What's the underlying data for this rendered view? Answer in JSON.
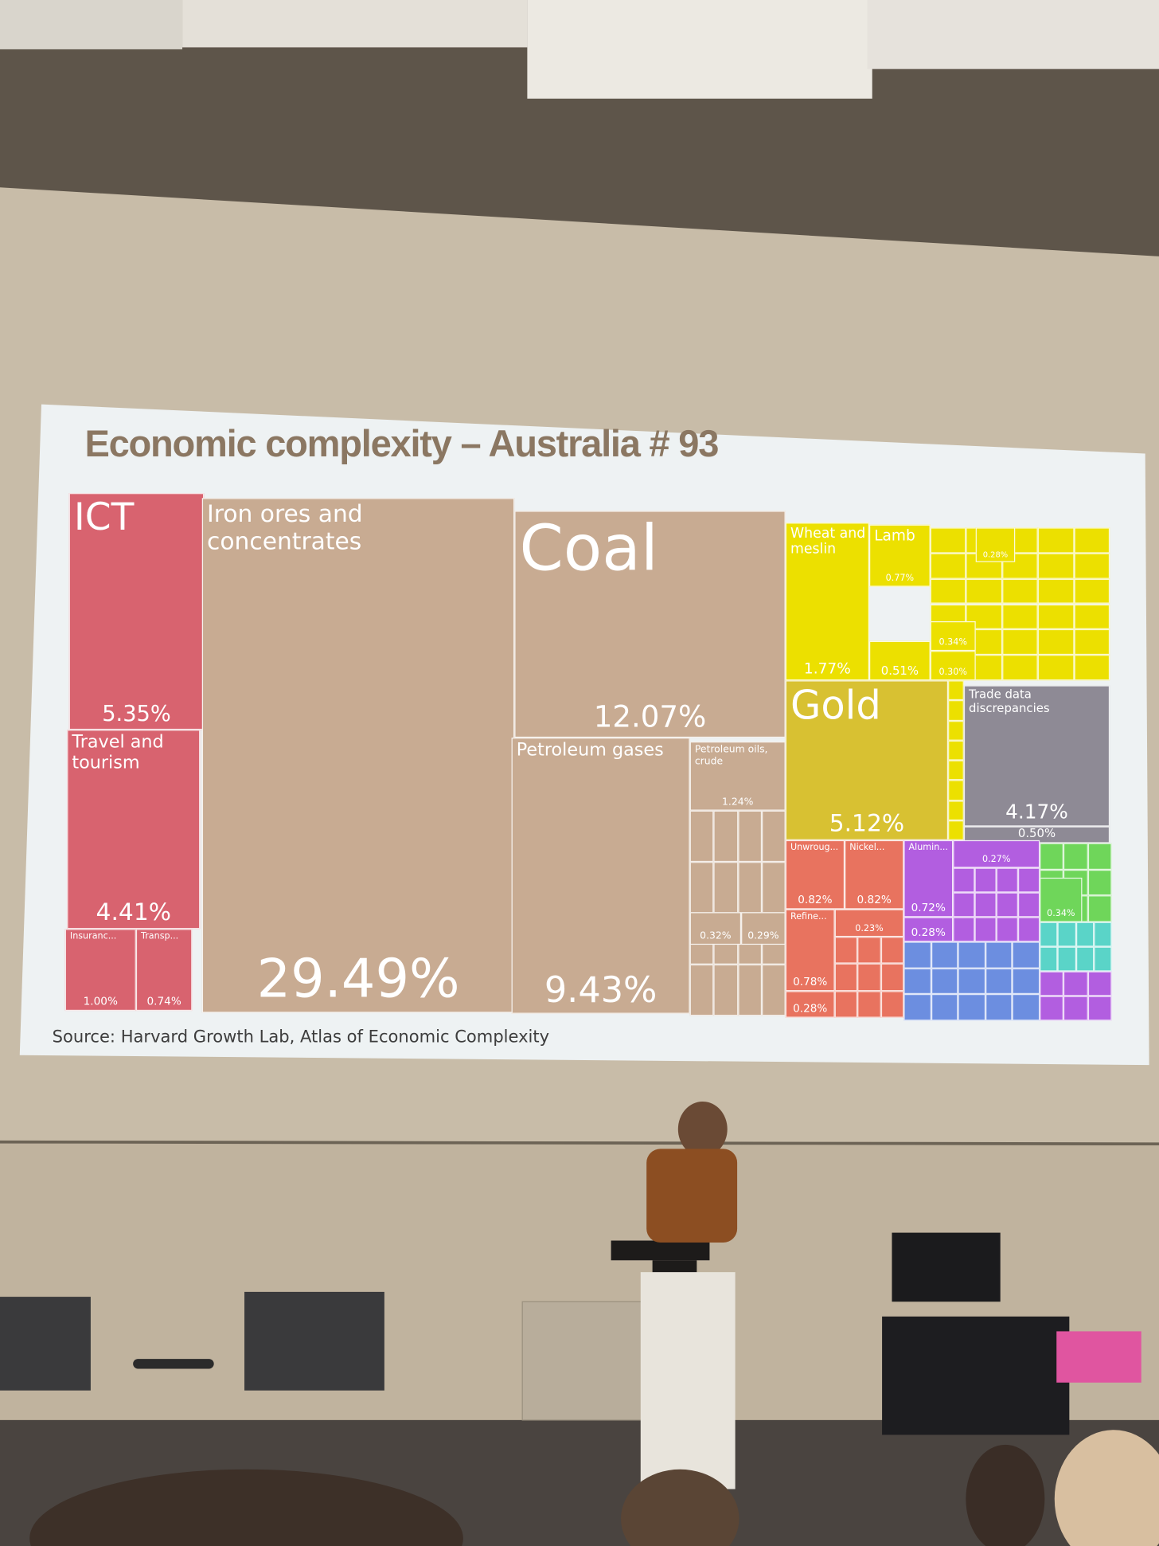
{
  "chart_data": {
    "type": "treemap",
    "title": "Economic complexity – Australia # 93",
    "source": "Source: Harvard Growth Lab, Atlas of Economic Complexity",
    "categories": [
      "ICT",
      "Travel and tourism",
      "Insuranc...",
      "Transp...",
      "Iron ores and concentrates",
      "Coal",
      "Petroleum gases",
      "Petroleum oils, crude",
      null,
      null,
      "Wheat and meslin",
      "Lamb",
      null,
      null,
      null,
      null,
      "Gold",
      "Trade data discrepancies",
      null,
      "Unwroug...",
      "Nickel...",
      null,
      "Refine...",
      null,
      "Alumin...",
      null,
      null,
      null
    ],
    "values": [
      5.35,
      4.41,
      1.0,
      0.74,
      29.49,
      12.07,
      9.43,
      1.24,
      0.32,
      0.29,
      1.77,
      0.77,
      0.51,
      0.34,
      0.3,
      0.28,
      5.12,
      4.17,
      0.5,
      0.82,
      0.82,
      0.23,
      0.78,
      0.28,
      0.72,
      0.28,
      0.27,
      0.34
    ],
    "value_labels": [
      "5.35%",
      "4.41%",
      "1.00%",
      "0.74%",
      "29.49%",
      "12.07%",
      "9.43%",
      "1.24%",
      "0.32%",
      "0.29%",
      "1.77%",
      "0.77%",
      "0.51%",
      "0.34%",
      "0.30%",
      "0.28%",
      "5.12%",
      "4.17%",
      "0.50%",
      "0.82%",
      "0.82%",
      "0.23%",
      "0.78%",
      "0.28%",
      "0.72%",
      "0.28%",
      "0.27%",
      "0.34%"
    ],
    "colors": [
      "#d8636f",
      "#d8636f",
      "#d8636f",
      "#d8636f",
      "#c8ab92",
      "#c8ab92",
      "#c8ab92",
      "#c8ab92",
      "#c8ab92",
      "#c8ab92",
      "#ece000",
      "#ece000",
      "#ece000",
      "#ece000",
      "#ece000",
      "#ece000",
      "#d8c132",
      "#8e8a95",
      "#8e8a95",
      "#e8735f",
      "#e8735f",
      "#e8735f",
      "#e8735f",
      "#e8735f",
      "#b25ee0",
      "#b25ee0",
      "#b25ee0",
      "#6fd65a"
    ]
  }
}
